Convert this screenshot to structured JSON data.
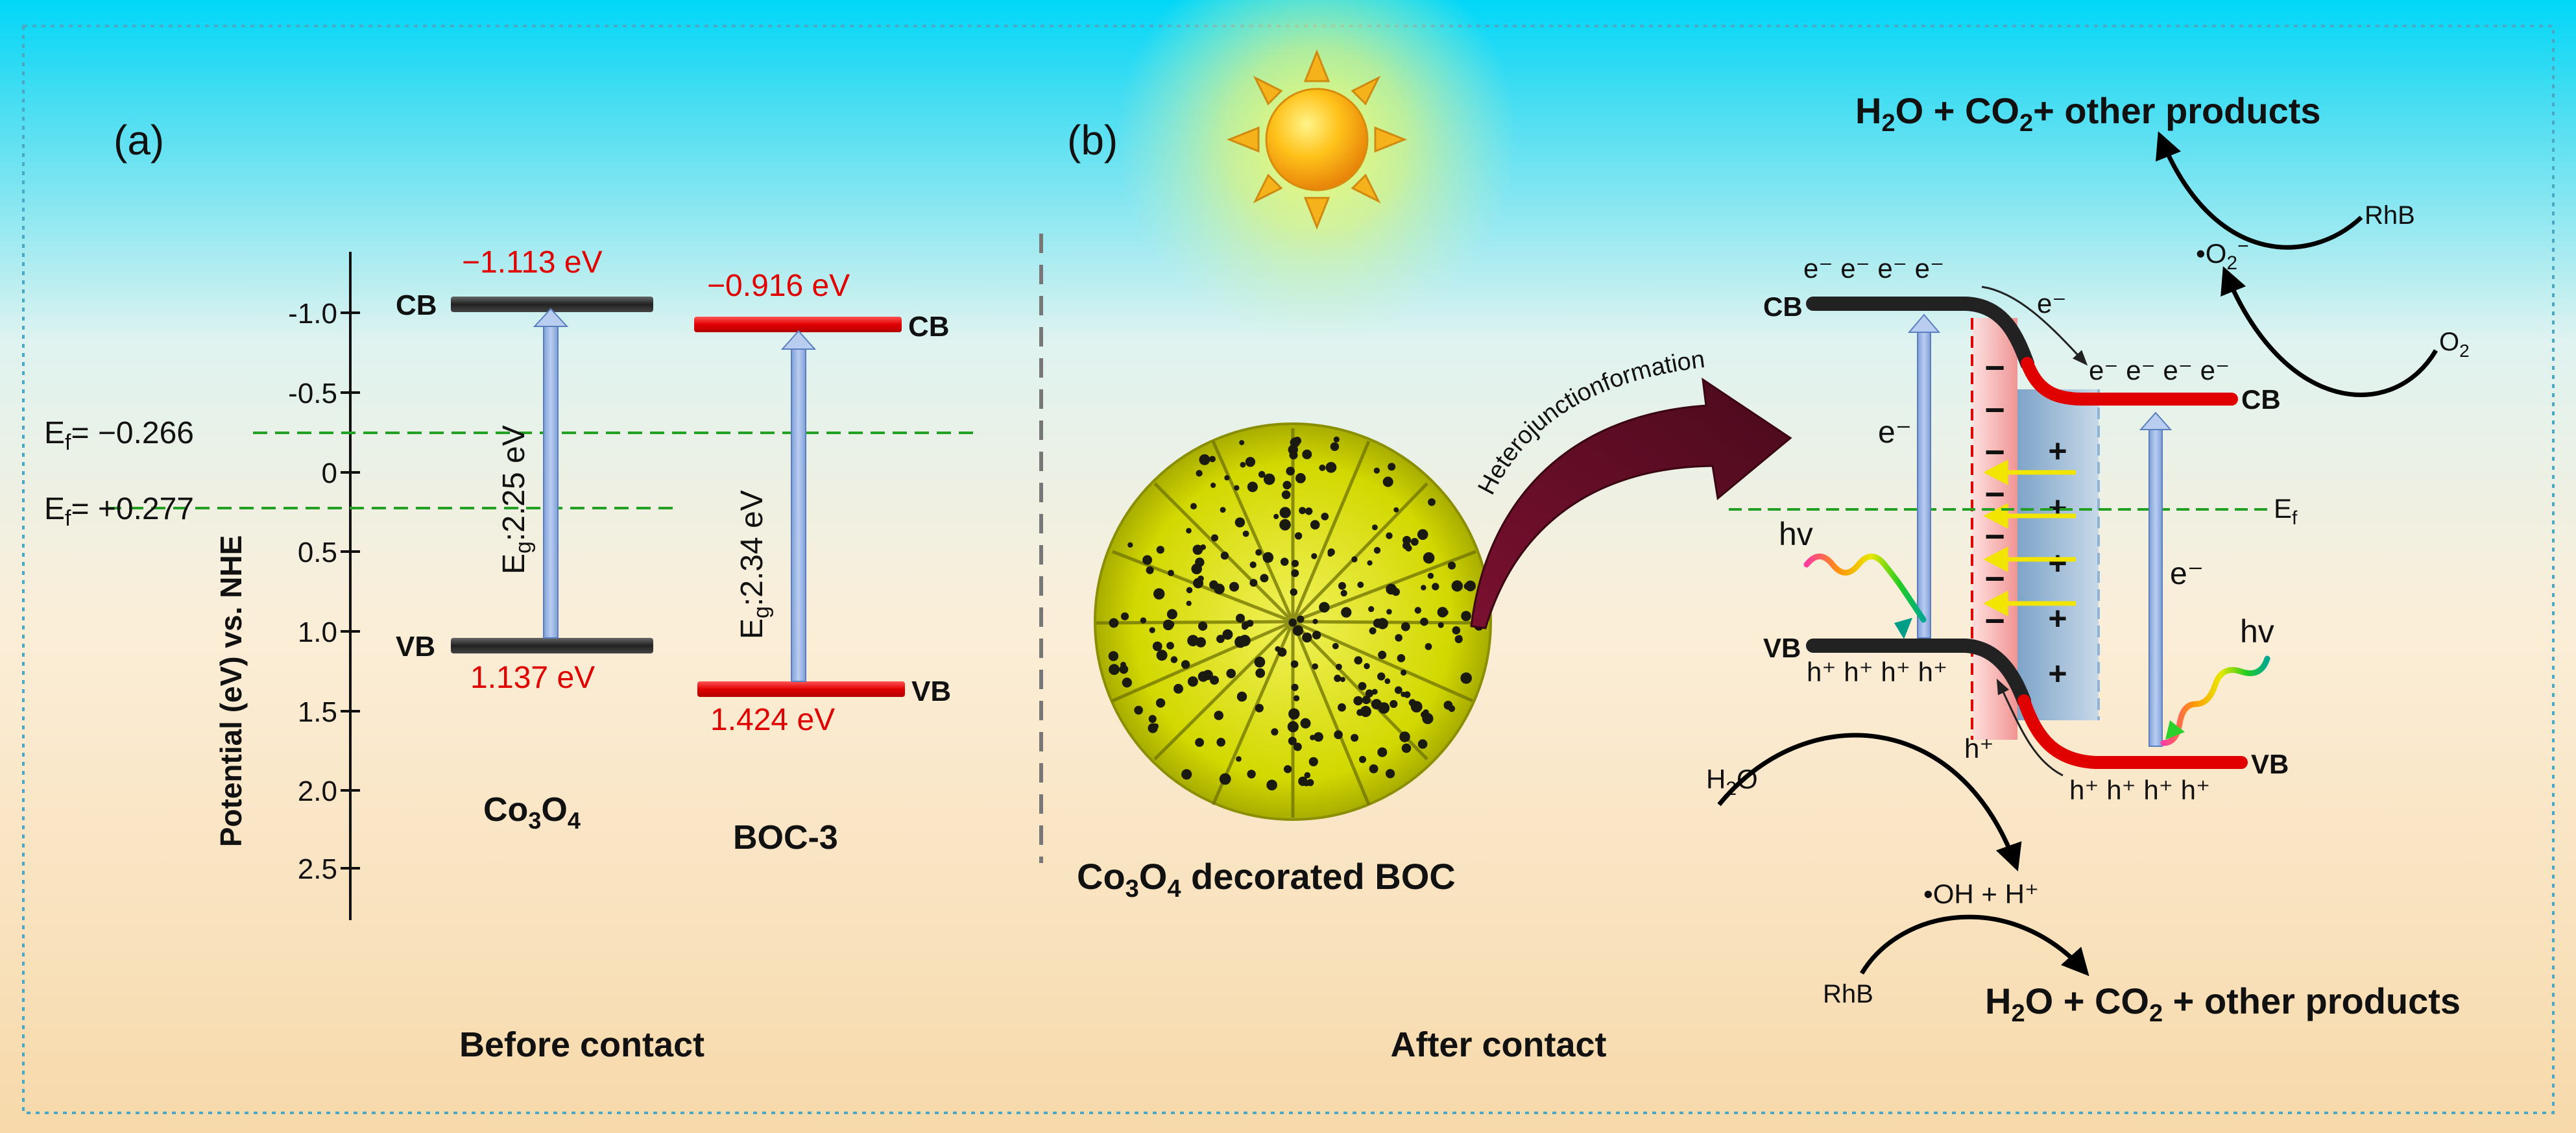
{
  "panels": {
    "a_label": "(a)",
    "b_label": "(b)",
    "before_caption": "Before contact",
    "after_caption": "After contact"
  },
  "axis": {
    "label": "Potential (eV) vs. NHE",
    "ticks": [
      "-1.0",
      "-0.5",
      "0",
      "0.5",
      "1.0",
      "1.5",
      "2.0",
      "2.5"
    ]
  },
  "fermi_levels": {
    "ef1": {
      "prefix": "E",
      "sub": "f",
      "value": "= −0.266"
    },
    "ef2": {
      "prefix": "E",
      "sub": "f",
      "value": "= +0.277"
    }
  },
  "co3o4": {
    "name_main": "Co",
    "name_sub1": "3",
    "name_mid": "O",
    "name_sub2": "4",
    "cb_label": "CB",
    "vb_label": "VB",
    "cb_value": "−1.113 eV",
    "vb_value": "1.137 eV",
    "gap_prefix": "E",
    "gap_sub": "g",
    "gap_value": ":2.25 eV"
  },
  "boc3": {
    "name": "BOC-3",
    "cb_label": "CB",
    "vb_label": "VB",
    "cb_value": "−0.916 eV",
    "vb_value": "1.424 eV",
    "gap_prefix": "E",
    "gap_sub": "g",
    "gap_value": ":2.34 eV"
  },
  "particle": {
    "caption_main": "Co",
    "caption_sub1": "3",
    "caption_mid": "O",
    "caption_sub2": "4",
    "caption_rest": " decorated BOC",
    "arrow_label": "Heterojunctionformation"
  },
  "mechanism": {
    "left_cb": "CB",
    "left_vb": "VB",
    "right_cb": "CB",
    "right_vb": "VB",
    "ef_prefix": "E",
    "ef_sub": "f",
    "electrons_left": "e⁻ e⁻ e⁻ e⁻",
    "electrons_right": "e⁻ e⁻ e⁻ e⁻",
    "electron_transfer": "e⁻",
    "holes_left": "h⁺ h⁺ h⁺ h⁺",
    "holes_right": "h⁺ h⁺ h⁺ h⁺",
    "hole_transfer": "h⁺",
    "e_left": "e⁻",
    "e_right": "e⁻",
    "hv_left": "hv",
    "hv_right": "hv",
    "minus_sign": "−",
    "plus_sign": "+",
    "o2": "O",
    "o2_sub": "2",
    "superoxide": "•O",
    "superoxide_sub": "2",
    "superoxide_sup": "−",
    "rhb_top": "RhB",
    "rhb_bottom": "RhB",
    "water": "H",
    "water_sub": "2",
    "water_rest": "O",
    "hydroxyl": "•OH + H⁺",
    "products_top": {
      "a": "H",
      "a_sub": "2",
      "b": "O + CO",
      "b_sub": "2",
      "c": "+ other products"
    },
    "products_bottom": {
      "a": "H",
      "a_sub": "2",
      "b": "O + CO",
      "b_sub": "2",
      "c": " + other products"
    }
  }
}
